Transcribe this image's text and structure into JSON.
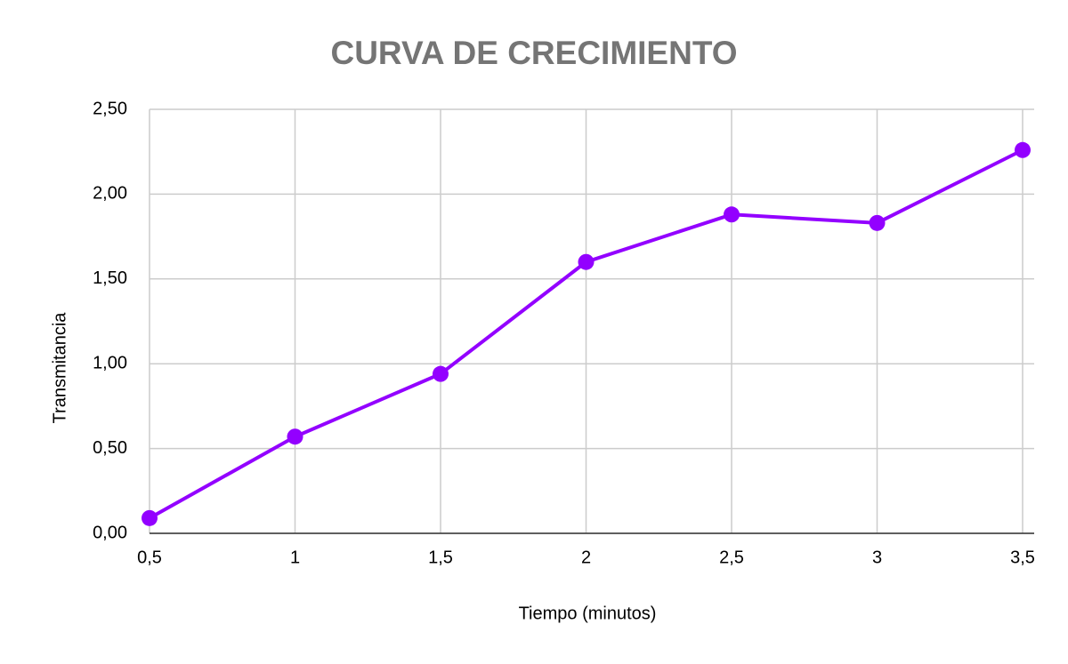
{
  "chart_data": {
    "type": "line",
    "title": "CURVA DE CRECIMIENTO",
    "x_label": "Tiempo (minutos)",
    "y_label": "Transmitancia",
    "x": [
      0.5,
      1,
      1.5,
      2,
      2.5,
      3,
      3.5
    ],
    "series": [
      {
        "color": "#9300ff",
        "values": [
          0.09,
          0.57,
          0.94,
          1.6,
          1.88,
          1.83,
          2.26
        ]
      }
    ],
    "xlim": [
      0.5,
      3.5
    ],
    "xticks": [
      {
        "value": 0.5,
        "label": "0,5"
      },
      1,
      {
        "value": 1.5,
        "label": "1,5"
      },
      2,
      {
        "value": 2.5,
        "label": "2,5"
      },
      3,
      {
        "value": 3.5,
        "label": "3,5"
      }
    ],
    "ylim": [
      0,
      2.5
    ],
    "yticks": [
      {
        "value": 0,
        "label": "0,00"
      },
      {
        "value": 0.5,
        "label": "0,50"
      },
      {
        "value": 1,
        "label": "1,00"
      },
      {
        "value": 1.5,
        "label": "1,50"
      },
      {
        "value": 2,
        "label": "2,00"
      },
      {
        "value": 2.5,
        "label": "2,50"
      }
    ],
    "grid": true
  }
}
